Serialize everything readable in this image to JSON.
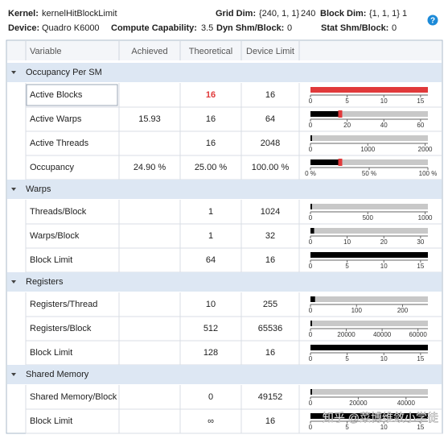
{
  "header": {
    "kernel": {
      "label": "Kernel:",
      "value": "kernelHitBlockLimit"
    },
    "grid_dim": {
      "label": "Grid Dim:",
      "value": "{240, 1, 1}",
      "extra": "240"
    },
    "block_dim": {
      "label": "Block Dim:",
      "value": "{1, 1, 1}",
      "extra": "1"
    },
    "device": {
      "label": "Device:",
      "value": "Quadro K6000"
    },
    "compute_capability": {
      "label": "Compute Capability:",
      "value": "3.5"
    },
    "dyn_shm": {
      "label": "Dyn Shm/Block:",
      "value": "0"
    },
    "stat_shm": {
      "label": "Stat Shm/Block:",
      "value": "0"
    }
  },
  "table": {
    "columns": [
      "Variable",
      "Achieved",
      "Theoretical",
      "Device Limit"
    ],
    "sections": [
      {
        "name": "Occupancy Per SM",
        "rows": [
          {
            "variable": "Active Blocks",
            "theoretical": 16,
            "limit": 16,
            "color": "#e0393a",
            "bar": {
              "xlim": [
                0,
                16
              ],
              "xticks": [
                0,
                5,
                10,
                15
              ]
            }
          },
          {
            "variable": "Active Warps",
            "achieved": 15.93,
            "theoretical": 16,
            "limit": 64,
            "bar": {
              "xlim": [
                0,
                64
              ],
              "xticks": [
                0,
                20,
                40,
                60
              ]
            }
          },
          {
            "variable": "Active Threads",
            "theoretical": 16,
            "limit": 2048,
            "bar": {
              "xlim": [
                0,
                2048
              ],
              "xticks": [
                0,
                1000,
                2000
              ]
            }
          },
          {
            "variable": "Occupancy",
            "achieved": {
              "value": 24.9,
              "label": "24.90 %"
            },
            "theoretical": {
              "value": 25,
              "label": "25.00 %"
            },
            "limit": {
              "value": 100,
              "label": "100.00 %"
            },
            "bar": {
              "xlim": [
                0,
                100
              ],
              "xticks": [
                {
                  "value": 0,
                  "label": "0 %"
                },
                {
                  "value": 50,
                  "label": "50 %"
                },
                {
                  "value": 100,
                  "label": "100 %"
                }
              ]
            }
          }
        ]
      },
      {
        "name": "Warps",
        "rows": [
          {
            "variable": "Threads/Block",
            "theoretical": 1,
            "limit": 1024,
            "bar": {
              "xlim": [
                0,
                1024
              ],
              "xticks": [
                0,
                500,
                1000
              ]
            }
          },
          {
            "variable": "Warps/Block",
            "theoretical": 1,
            "limit": 32,
            "bar": {
              "xlim": [
                0,
                32
              ],
              "xticks": [
                0,
                10,
                20,
                30
              ]
            }
          },
          {
            "variable": "Block Limit",
            "theoretical": 64,
            "limit": 16,
            "bar": {
              "xlim": [
                0,
                16
              ],
              "xticks": [
                0,
                5,
                10,
                15
              ]
            }
          }
        ]
      },
      {
        "name": "Registers",
        "rows": [
          {
            "variable": "Registers/Thread",
            "theoretical": 10,
            "limit": 255,
            "bar": {
              "xlim": [
                0,
                255
              ],
              "xticks": [
                0,
                100,
                200
              ]
            }
          },
          {
            "variable": "Registers/Block",
            "theoretical": 512,
            "limit": 65536,
            "bar": {
              "xlim": [
                0,
                65536
              ],
              "xticks": [
                0,
                20000,
                40000,
                60000
              ]
            }
          },
          {
            "variable": "Block Limit",
            "theoretical": 128,
            "limit": 16,
            "bar": {
              "xlim": [
                0,
                16
              ],
              "xticks": [
                0,
                5,
                10,
                15
              ]
            }
          }
        ]
      },
      {
        "name": "Shared Memory",
        "rows": [
          {
            "variable": "Shared Memory/Block",
            "theoretical": 0,
            "limit": 49152,
            "bar": {
              "xlim": [
                0,
                49152
              ],
              "xticks": [
                0,
                20000,
                40000
              ]
            }
          },
          {
            "variable": "Block Limit",
            "theoretical": "∞",
            "limit": 16,
            "bar": {
              "xlim": [
                0,
                16
              ],
              "xticks": [
                0,
                5,
                10,
                15
              ]
            }
          }
        ]
      }
    ]
  },
  "watermark": "知乎 @菜博维敛小学徒"
}
